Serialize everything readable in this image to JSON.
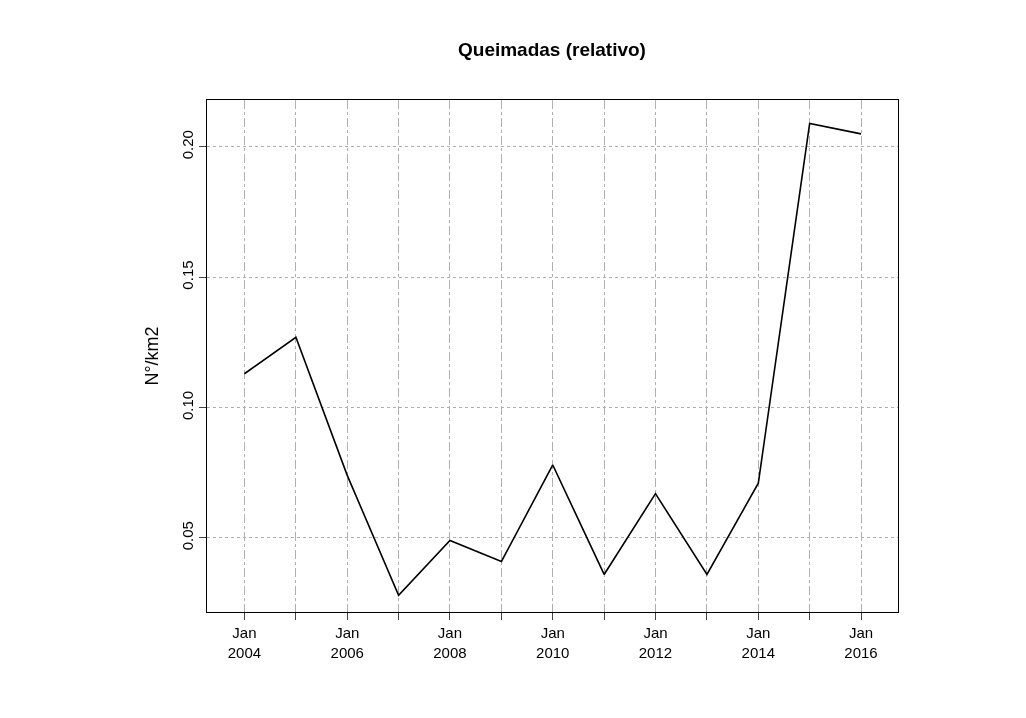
{
  "chart_data": {
    "type": "line",
    "title": "Queimadas (relativo)",
    "ylabel": "N°/km2",
    "x": [
      "2004-01",
      "2005-01",
      "2006-01",
      "2007-01",
      "2008-01",
      "2009-01",
      "2010-01",
      "2011-01",
      "2012-01",
      "2013-01",
      "2014-01",
      "2015-01",
      "2016-01"
    ],
    "series": [
      {
        "color": "#000000",
        "values": [
          0.113,
          0.127,
          0.074,
          0.028,
          0.049,
          0.041,
          0.078,
          0.036,
          0.067,
          0.036,
          0.071,
          0.209,
          0.205
        ]
      }
    ],
    "xlim": [
      "2003-04-10",
      "2016-09-20"
    ],
    "xticks": [
      {
        "value": "2004-01",
        "label": "Jan\n2004"
      },
      {
        "value": "2005-01",
        "label": null
      },
      {
        "value": "2006-01",
        "label": "Jan\n2006"
      },
      {
        "value": "2007-01",
        "label": null
      },
      {
        "value": "2008-01",
        "label": "Jan\n2008"
      },
      {
        "value": "2009-01",
        "label": null
      },
      {
        "value": "2010-01",
        "label": "Jan\n2010"
      },
      {
        "value": "2011-01",
        "label": null
      },
      {
        "value": "2012-01",
        "label": "Jan\n2012"
      },
      {
        "value": "2013-01",
        "label": null
      },
      {
        "value": "2014-01",
        "label": "Jan\n2014"
      },
      {
        "value": "2015-01",
        "label": null
      },
      {
        "value": "2016-01",
        "label": "Jan\n2016"
      }
    ],
    "ylim": [
      0.0216,
      0.218
    ],
    "yticks": [
      {
        "value": 0.05,
        "label": "0.05"
      },
      {
        "value": 0.1,
        "label": "0.10"
      },
      {
        "value": 0.15,
        "label": "0.15"
      },
      {
        "value": 0.2,
        "label": "0.20"
      }
    ],
    "grid": true,
    "marker": "none",
    "line_style": "solid"
  }
}
